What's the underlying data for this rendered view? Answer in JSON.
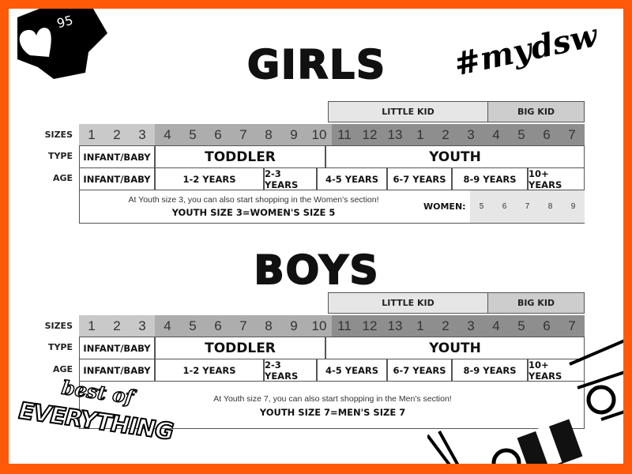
{
  "badge": {
    "icon": "heart-icon",
    "count": "95"
  },
  "logo_hashtag": "#mydsw",
  "logo_bottom": {
    "top": "best of",
    "bottom": "EVERYTHING"
  },
  "colors": {
    "border": "#ff5a0a",
    "size_light": "#c9c9c9",
    "size_mid": "#adadad",
    "size_dark": "#8e8e8e",
    "little_kid": "#e6e6e6",
    "big_kid": "#cdcdcd"
  },
  "girls": {
    "title": "GIRLS",
    "groups": {
      "little_kid": "LITTLE KID",
      "big_kid": "BIG KID"
    },
    "labels": {
      "sizes": "SIZES",
      "type": "TYPE",
      "age": "AGE"
    },
    "sizes": [
      "1",
      "2",
      "3",
      "4",
      "5",
      "6",
      "7",
      "8",
      "9",
      "10",
      "11",
      "12",
      "13",
      "1",
      "2",
      "3",
      "4",
      "5",
      "6",
      "7"
    ],
    "types": [
      "INFANT/BABY",
      "TODDLER",
      "YOUTH"
    ],
    "ages": [
      "INFANT/BABY",
      "1-2 YEARS",
      "2-3 YEARS",
      "4-5 YEARS",
      "6-7 YEARS",
      "8-9 YEARS",
      "10+ YEARS"
    ],
    "note": "At Youth size 3, you can also start shopping in the Women's section!",
    "conversion": "YOUTH SIZE 3=WOMEN'S SIZE 5",
    "women_label": "WOMEN:",
    "women_sizes": [
      "5",
      "6",
      "7",
      "8",
      "9"
    ]
  },
  "boys": {
    "title": "BOYS",
    "groups": {
      "little_kid": "LITTLE KID",
      "big_kid": "BIG KID"
    },
    "labels": {
      "sizes": "SIZES",
      "type": "TYPE",
      "age": "AGE"
    },
    "sizes": [
      "1",
      "2",
      "3",
      "4",
      "5",
      "6",
      "7",
      "8",
      "9",
      "10",
      "11",
      "12",
      "13",
      "1",
      "2",
      "3",
      "4",
      "5",
      "6",
      "7"
    ],
    "types": [
      "INFANT/BABY",
      "TODDLER",
      "YOUTH"
    ],
    "ages": [
      "INFANT/BABY",
      "1-2 YEARS",
      "2-3 YEARS",
      "4-5 YEARS",
      "6-7 YEARS",
      "8-9 YEARS",
      "10+ YEARS"
    ],
    "note": "At Youth size 7, you can also start shopping in the Men's section!",
    "conversion": "YOUTH SIZE 7=MEN'S SIZE 7"
  }
}
